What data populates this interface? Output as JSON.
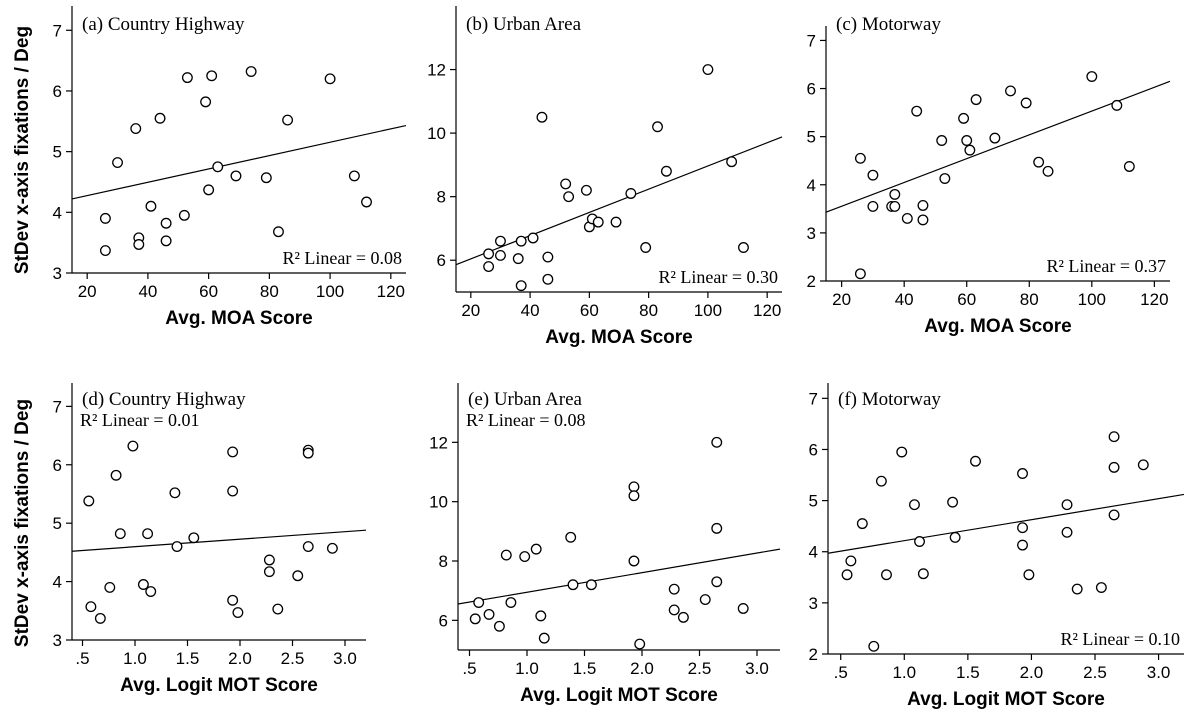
{
  "figure": {
    "ylabel": "StDev x-axis fixations / Deg"
  },
  "chart_data": [
    {
      "type": "scatter",
      "title": "(a) Country Highway",
      "xlabel": "Avg. MOA Score",
      "ylabel": "StDev x-axis fixations / Deg",
      "xlim": [
        15,
        125
      ],
      "ylim": [
        3,
        7.4
      ],
      "xticks": [
        20,
        40,
        60,
        80,
        100,
        120
      ],
      "xtick_labels": [
        "20",
        "40",
        "60",
        "80",
        "100",
        "120"
      ],
      "yticks": [
        3,
        4,
        5,
        6,
        7
      ],
      "ytick_labels": [
        "3",
        "4",
        "5",
        "6",
        "7"
      ],
      "r2_label": "R² Linear = 0.08",
      "r2_position": "bottom-right",
      "fit": {
        "x": [
          15,
          125
        ],
        "y": [
          4.22,
          5.43
        ]
      },
      "points": [
        [
          26,
          3.9
        ],
        [
          26,
          3.37
        ],
        [
          30,
          4.82
        ],
        [
          36,
          5.38
        ],
        [
          37,
          3.58
        ],
        [
          37,
          3.47
        ],
        [
          41,
          4.1
        ],
        [
          44,
          5.55
        ],
        [
          46,
          3.82
        ],
        [
          46,
          3.53
        ],
        [
          52,
          3.95
        ],
        [
          53,
          6.22
        ],
        [
          59,
          5.82
        ],
        [
          60,
          4.37
        ],
        [
          61,
          6.25
        ],
        [
          63,
          4.75
        ],
        [
          69,
          4.6
        ],
        [
          74,
          6.32
        ],
        [
          79,
          4.57
        ],
        [
          83,
          3.68
        ],
        [
          86,
          5.52
        ],
        [
          100,
          6.2
        ],
        [
          108,
          4.6
        ],
        [
          112,
          4.17
        ]
      ]
    },
    {
      "type": "scatter",
      "title": "(b) Urban Area",
      "xlabel": "Avg. MOA Score",
      "ylabel": "",
      "xlim": [
        15,
        125
      ],
      "ylim": [
        5,
        14
      ],
      "xticks": [
        20,
        40,
        60,
        80,
        100,
        120
      ],
      "xtick_labels": [
        "20",
        "40",
        "60",
        "80",
        "100",
        "120"
      ],
      "yticks": [
        6,
        8,
        10,
        12
      ],
      "ytick_labels": [
        "6",
        "8",
        "10",
        "12"
      ],
      "r2_label": "R² Linear = 0.30",
      "r2_position": "bottom-right",
      "fit": {
        "x": [
          15,
          125
        ],
        "y": [
          5.86,
          9.88
        ]
      },
      "points": [
        [
          26,
          6.2
        ],
        [
          26,
          5.8
        ],
        [
          30,
          6.6
        ],
        [
          30,
          6.15
        ],
        [
          36,
          6.05
        ],
        [
          37,
          6.6
        ],
        [
          37,
          5.2
        ],
        [
          41,
          6.7
        ],
        [
          44,
          10.5
        ],
        [
          46,
          6.1
        ],
        [
          46,
          5.4
        ],
        [
          52,
          8.4
        ],
        [
          53,
          8.0
        ],
        [
          59,
          8.2
        ],
        [
          60,
          7.05
        ],
        [
          61,
          7.3
        ],
        [
          63,
          7.2
        ],
        [
          69,
          7.2
        ],
        [
          74,
          8.1
        ],
        [
          79,
          6.4
        ],
        [
          83,
          10.2
        ],
        [
          86,
          8.8
        ],
        [
          100,
          12.0
        ],
        [
          108,
          9.1
        ],
        [
          112,
          6.4
        ]
      ]
    },
    {
      "type": "scatter",
      "title": "(c) Motorway",
      "xlabel": "Avg. MOA Score",
      "ylabel": "",
      "xlim": [
        15,
        125
      ],
      "ylim": [
        2,
        7.3
      ],
      "xticks": [
        20,
        40,
        60,
        80,
        100,
        120
      ],
      "xtick_labels": [
        "20",
        "40",
        "60",
        "80",
        "100",
        "120"
      ],
      "yticks": [
        2,
        3,
        4,
        5,
        6,
        7
      ],
      "ytick_labels": [
        "2",
        "3",
        "4",
        "5",
        "6",
        "7"
      ],
      "r2_label": "R² Linear = 0.37",
      "r2_position": "bottom-right",
      "fit": {
        "x": [
          15,
          125
        ],
        "y": [
          3.43,
          6.15
        ]
      },
      "points": [
        [
          26,
          4.55
        ],
        [
          26,
          2.15
        ],
        [
          30,
          4.2
        ],
        [
          30,
          3.55
        ],
        [
          36,
          3.55
        ],
        [
          37,
          3.8
        ],
        [
          37,
          3.55
        ],
        [
          41,
          3.3
        ],
        [
          44,
          5.53
        ],
        [
          46,
          3.57
        ],
        [
          46,
          3.27
        ],
        [
          52,
          4.92
        ],
        [
          53,
          4.13
        ],
        [
          59,
          5.38
        ],
        [
          60,
          4.92
        ],
        [
          61,
          4.72
        ],
        [
          63,
          5.77
        ],
        [
          69,
          4.97
        ],
        [
          74,
          5.95
        ],
        [
          79,
          5.7
        ],
        [
          83,
          4.47
        ],
        [
          86,
          4.28
        ],
        [
          100,
          6.25
        ],
        [
          108,
          5.65
        ],
        [
          112,
          4.38
        ]
      ]
    },
    {
      "type": "scatter",
      "title": "(d) Country Highway",
      "xlabel": "Avg. Logit MOT Score",
      "ylabel": "StDev x-axis fixations / Deg",
      "xlim": [
        0.4,
        3.2
      ],
      "ylim": [
        3,
        7.4
      ],
      "xticks": [
        0.5,
        1.0,
        1.5,
        2.0,
        2.5,
        3.0
      ],
      "xtick_labels": [
        ".5",
        "1.0",
        "1.5",
        "2.0",
        "2.5",
        "3.0"
      ],
      "yticks": [
        3,
        4,
        5,
        6,
        7
      ],
      "ytick_labels": [
        "3",
        "4",
        "5",
        "6",
        "7"
      ],
      "r2_label": "R² Linear = 0.01",
      "r2_position": "top-left",
      "fit": {
        "x": [
          0.4,
          3.2
        ],
        "y": [
          4.52,
          4.88
        ]
      },
      "points": [
        [
          0.56,
          5.38
        ],
        [
          0.58,
          3.57
        ],
        [
          0.67,
          3.37
        ],
        [
          0.76,
          3.9
        ],
        [
          0.82,
          5.82
        ],
        [
          0.86,
          4.82
        ],
        [
          0.98,
          6.32
        ],
        [
          1.08,
          3.95
        ],
        [
          1.12,
          4.82
        ],
        [
          1.15,
          3.83
        ],
        [
          1.38,
          5.52
        ],
        [
          1.4,
          4.6
        ],
        [
          1.56,
          4.75
        ],
        [
          1.93,
          6.22
        ],
        [
          1.93,
          5.55
        ],
        [
          1.93,
          3.68
        ],
        [
          1.98,
          3.47
        ],
        [
          2.28,
          4.37
        ],
        [
          2.28,
          4.17
        ],
        [
          2.36,
          3.53
        ],
        [
          2.55,
          4.1
        ],
        [
          2.65,
          6.25
        ],
        [
          2.65,
          6.2
        ],
        [
          2.65,
          4.6
        ],
        [
          2.88,
          4.57
        ]
      ]
    },
    {
      "type": "scatter",
      "title": "(e) Urban Area",
      "xlabel": "Avg. Logit MOT Score",
      "ylabel": "",
      "xlim": [
        0.4,
        3.2
      ],
      "ylim": [
        5,
        14
      ],
      "xticks": [
        0.5,
        1.0,
        1.5,
        2.0,
        2.5,
        3.0
      ],
      "xtick_labels": [
        ".5",
        "1.0",
        "1.5",
        "2.0",
        "2.5",
        "3.0"
      ],
      "yticks": [
        6,
        8,
        10,
        12
      ],
      "ytick_labels": [
        "6",
        "8",
        "10",
        "12"
      ],
      "r2_label": "R² Linear = 0.08",
      "r2_position": "top-left",
      "fit": {
        "x": [
          0.4,
          3.2
        ],
        "y": [
          6.55,
          8.4
        ]
      },
      "points": [
        [
          0.55,
          6.05
        ],
        [
          0.58,
          6.6
        ],
        [
          0.67,
          6.2
        ],
        [
          0.76,
          5.8
        ],
        [
          0.82,
          8.2
        ],
        [
          0.86,
          6.6
        ],
        [
          0.98,
          8.15
        ],
        [
          1.08,
          8.4
        ],
        [
          1.12,
          6.15
        ],
        [
          1.15,
          5.4
        ],
        [
          1.38,
          8.8
        ],
        [
          1.4,
          7.2
        ],
        [
          1.56,
          7.2
        ],
        [
          1.93,
          10.5
        ],
        [
          1.93,
          10.2
        ],
        [
          1.93,
          8.0
        ],
        [
          1.98,
          5.2
        ],
        [
          2.28,
          7.05
        ],
        [
          2.28,
          6.35
        ],
        [
          2.36,
          6.1
        ],
        [
          2.55,
          6.7
        ],
        [
          2.65,
          12.0
        ],
        [
          2.65,
          9.1
        ],
        [
          2.65,
          7.3
        ],
        [
          2.88,
          6.4
        ]
      ]
    },
    {
      "type": "scatter",
      "title": "(f) Motorway",
      "xlabel": "Avg. Logit MOT Score",
      "ylabel": "",
      "xlim": [
        0.4,
        3.2
      ],
      "ylim": [
        2,
        7.3
      ],
      "xticks": [
        0.5,
        1.0,
        1.5,
        2.0,
        2.5,
        3.0
      ],
      "xtick_labels": [
        ".5",
        "1.0",
        "1.5",
        "2.0",
        "2.5",
        "3.0"
      ],
      "yticks": [
        2,
        3,
        4,
        5,
        6,
        7
      ],
      "ytick_labels": [
        "2",
        "3",
        "4",
        "5",
        "6",
        "7"
      ],
      "r2_label": "R² Linear = 0.10",
      "r2_position": "bottom-right",
      "fit": {
        "x": [
          0.4,
          3.2
        ],
        "y": [
          3.97,
          5.12
        ]
      },
      "points": [
        [
          0.55,
          3.55
        ],
        [
          0.58,
          3.82
        ],
        [
          0.67,
          4.55
        ],
        [
          0.76,
          2.15
        ],
        [
          0.82,
          5.38
        ],
        [
          0.86,
          3.55
        ],
        [
          0.98,
          5.95
        ],
        [
          1.08,
          4.92
        ],
        [
          1.12,
          4.2
        ],
        [
          1.15,
          3.57
        ],
        [
          1.38,
          4.97
        ],
        [
          1.4,
          4.28
        ],
        [
          1.56,
          5.77
        ],
        [
          1.93,
          5.53
        ],
        [
          1.93,
          4.47
        ],
        [
          1.93,
          4.13
        ],
        [
          1.98,
          3.55
        ],
        [
          2.28,
          4.92
        ],
        [
          2.28,
          4.38
        ],
        [
          2.36,
          3.27
        ],
        [
          2.55,
          3.3
        ],
        [
          2.65,
          6.25
        ],
        [
          2.65,
          5.65
        ],
        [
          2.65,
          4.72
        ],
        [
          2.88,
          5.7
        ]
      ]
    }
  ]
}
